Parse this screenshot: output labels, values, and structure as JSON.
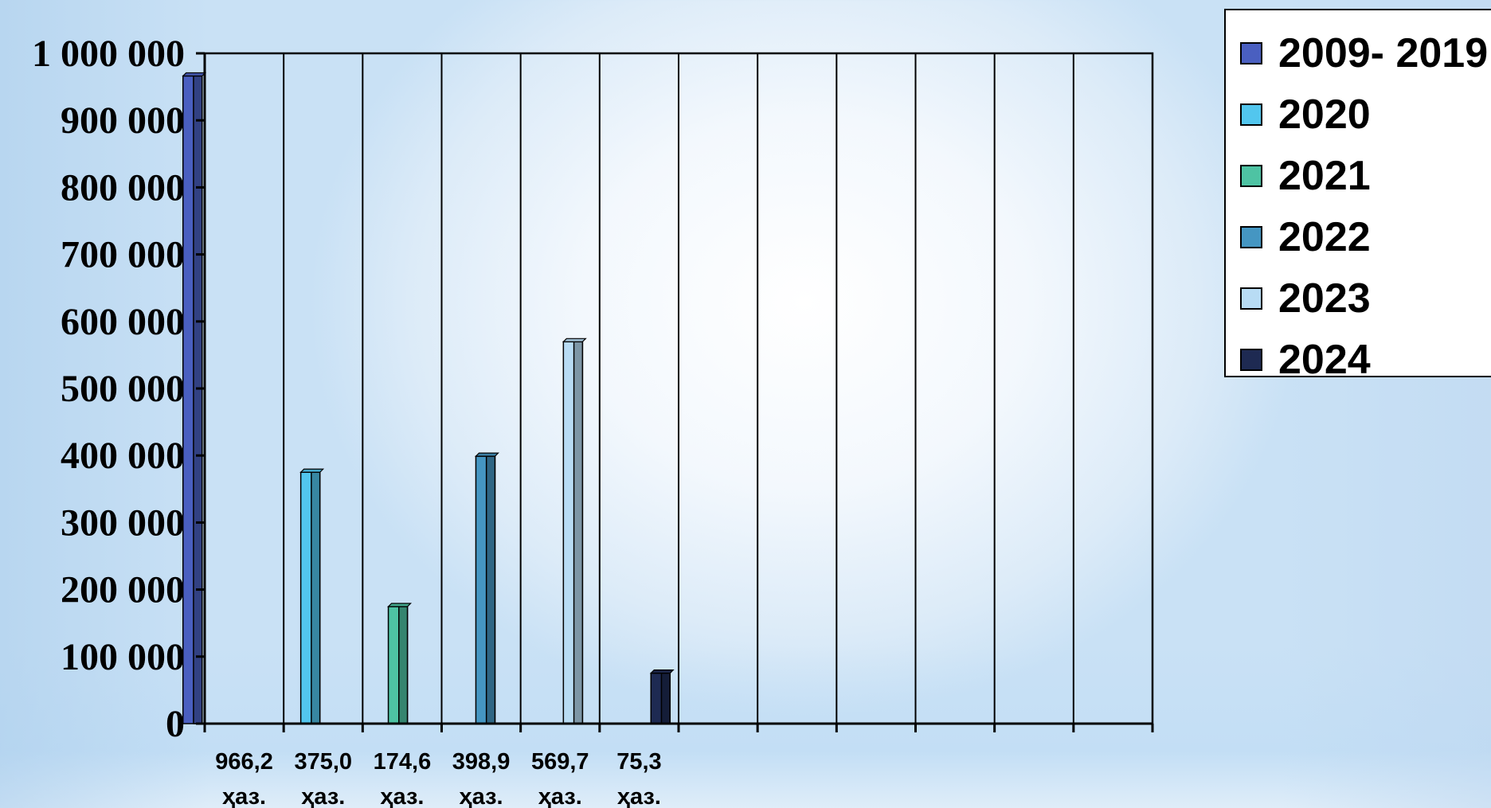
{
  "chart_data": {
    "type": "bar",
    "ylim": [
      0,
      1000000
    ],
    "y_ticks": [
      "0",
      "100 000",
      "200 000",
      "300 000",
      "400 000",
      "500 000",
      "600 000",
      "700 000",
      "800 000",
      "900 000",
      "1 000 000"
    ],
    "categories": [
      {
        "value_label": "966,2",
        "unit_label": "ҳаз."
      },
      {
        "value_label": "375,0",
        "unit_label": "ҳаз."
      },
      {
        "value_label": "174,6",
        "unit_label": "ҳаз."
      },
      {
        "value_label": "398,9",
        "unit_label": "ҳаз."
      },
      {
        "value_label": "569,7",
        "unit_label": "ҳаз."
      },
      {
        "value_label": "75,3",
        "unit_label": "ҳаз."
      }
    ],
    "empty_categories": 6,
    "series": [
      {
        "name": "2009- 2019",
        "value": 966200,
        "color": "#4a5fc0"
      },
      {
        "name": "2020",
        "value": 375000,
        "color": "#52c6ee"
      },
      {
        "name": "2021",
        "value": 174600,
        "color": "#4ec3a3"
      },
      {
        "name": "2022",
        "value": 398900,
        "color": "#4596c2"
      },
      {
        "name": "2023",
        "value": 569700,
        "color": "#b8dcf4"
      },
      {
        "name": "2024",
        "value": 75300,
        "color": "#1e2a52"
      }
    ],
    "grid": "vertical",
    "legend_position": "top-right"
  }
}
